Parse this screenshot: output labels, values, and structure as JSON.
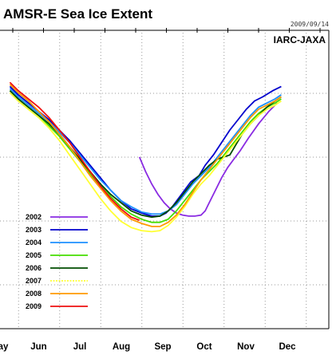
{
  "chart_data": {
    "type": "line",
    "title": "AMSR-E Sea Ice Extent",
    "date_stamp": "2009/09/14",
    "org": "IARC-JAXA",
    "x_ticks": [
      "ay",
      "Jun",
      "Jul",
      "Aug",
      "Sep",
      "Oct",
      "Nov",
      "Dec"
    ],
    "x_domain": [
      4.3,
      12.3
    ],
    "y_domain_relative": [
      0,
      1
    ],
    "grid": true,
    "legend": "bottom-left",
    "series": [
      {
        "name": "2002",
        "color": "#8a2be2",
        "points": [
          [
            7.45,
            0.62
          ],
          [
            7.6,
            0.55
          ],
          [
            7.75,
            0.49
          ],
          [
            7.9,
            0.44
          ],
          [
            8.05,
            0.4
          ],
          [
            8.2,
            0.37
          ],
          [
            8.35,
            0.35
          ],
          [
            8.5,
            0.34
          ],
          [
            8.65,
            0.335
          ],
          [
            8.8,
            0.335
          ],
          [
            8.95,
            0.34
          ],
          [
            9.05,
            0.36
          ],
          [
            9.15,
            0.4
          ],
          [
            9.3,
            0.46
          ],
          [
            9.45,
            0.52
          ],
          [
            9.6,
            0.57
          ],
          [
            9.75,
            0.61
          ],
          [
            9.9,
            0.65
          ],
          [
            10.1,
            0.71
          ],
          [
            10.35,
            0.78
          ],
          [
            10.6,
            0.84
          ],
          [
            10.8,
            0.88
          ]
        ]
      },
      {
        "name": "2003",
        "color": "#0000cd",
        "points": [
          [
            4.3,
            0.96
          ],
          [
            4.5,
            0.92
          ],
          [
            4.75,
            0.88
          ],
          [
            5.0,
            0.84
          ],
          [
            5.25,
            0.8
          ],
          [
            5.5,
            0.75
          ],
          [
            5.75,
            0.7
          ],
          [
            6.0,
            0.64
          ],
          [
            6.25,
            0.58
          ],
          [
            6.5,
            0.52
          ],
          [
            6.75,
            0.46
          ],
          [
            7.0,
            0.41
          ],
          [
            7.25,
            0.37
          ],
          [
            7.5,
            0.35
          ],
          [
            7.75,
            0.335
          ],
          [
            7.95,
            0.335
          ],
          [
            8.1,
            0.35
          ],
          [
            8.25,
            0.38
          ],
          [
            8.4,
            0.42
          ],
          [
            8.55,
            0.46
          ],
          [
            8.7,
            0.5
          ],
          [
            8.9,
            0.53
          ],
          [
            9.05,
            0.58
          ],
          [
            9.25,
            0.63
          ],
          [
            9.45,
            0.69
          ],
          [
            9.65,
            0.75
          ],
          [
            9.85,
            0.8
          ],
          [
            10.05,
            0.85
          ],
          [
            10.25,
            0.89
          ],
          [
            10.45,
            0.91
          ],
          [
            10.7,
            0.94
          ],
          [
            10.9,
            0.96
          ]
        ]
      },
      {
        "name": "2004",
        "color": "#1e90ff",
        "points": [
          [
            4.3,
            0.95
          ],
          [
            4.5,
            0.91
          ],
          [
            4.75,
            0.87
          ],
          [
            5.0,
            0.83
          ],
          [
            5.25,
            0.79
          ],
          [
            5.5,
            0.74
          ],
          [
            5.75,
            0.69
          ],
          [
            6.0,
            0.63
          ],
          [
            6.25,
            0.57
          ],
          [
            6.5,
            0.51
          ],
          [
            6.75,
            0.46
          ],
          [
            7.0,
            0.41
          ],
          [
            7.25,
            0.38
          ],
          [
            7.5,
            0.355
          ],
          [
            7.75,
            0.345
          ],
          [
            7.95,
            0.345
          ],
          [
            8.15,
            0.36
          ],
          [
            8.35,
            0.39
          ],
          [
            8.55,
            0.44
          ],
          [
            8.75,
            0.49
          ],
          [
            8.95,
            0.53
          ],
          [
            9.15,
            0.57
          ],
          [
            9.35,
            0.62
          ],
          [
            9.55,
            0.67
          ],
          [
            9.75,
            0.72
          ],
          [
            9.95,
            0.77
          ],
          [
            10.15,
            0.82
          ],
          [
            10.35,
            0.86
          ],
          [
            10.55,
            0.88
          ],
          [
            10.75,
            0.9
          ],
          [
            10.9,
            0.92
          ]
        ]
      },
      {
        "name": "2005",
        "color": "#44dd00",
        "points": [
          [
            4.3,
            0.94
          ],
          [
            4.5,
            0.9
          ],
          [
            4.75,
            0.86
          ],
          [
            5.0,
            0.82
          ],
          [
            5.25,
            0.77
          ],
          [
            5.5,
            0.72
          ],
          [
            5.75,
            0.66
          ],
          [
            6.0,
            0.6
          ],
          [
            6.25,
            0.54
          ],
          [
            6.5,
            0.48
          ],
          [
            6.75,
            0.43
          ],
          [
            7.0,
            0.38
          ],
          [
            7.25,
            0.345
          ],
          [
            7.5,
            0.32
          ],
          [
            7.75,
            0.305
          ],
          [
            7.95,
            0.305
          ],
          [
            8.15,
            0.32
          ],
          [
            8.35,
            0.36
          ],
          [
            8.55,
            0.41
          ],
          [
            8.75,
            0.46
          ],
          [
            8.95,
            0.51
          ],
          [
            9.15,
            0.55
          ],
          [
            9.35,
            0.59
          ],
          [
            9.55,
            0.64
          ],
          [
            9.75,
            0.69
          ],
          [
            9.95,
            0.74
          ],
          [
            10.15,
            0.79
          ],
          [
            10.35,
            0.83
          ],
          [
            10.55,
            0.86
          ],
          [
            10.75,
            0.88
          ],
          [
            10.9,
            0.9
          ]
        ]
      },
      {
        "name": "2006",
        "color": "#004d00",
        "points": [
          [
            4.3,
            0.94
          ],
          [
            4.5,
            0.9
          ],
          [
            4.75,
            0.86
          ],
          [
            5.0,
            0.82
          ],
          [
            5.25,
            0.78
          ],
          [
            5.5,
            0.73
          ],
          [
            5.75,
            0.67
          ],
          [
            6.0,
            0.61
          ],
          [
            6.25,
            0.55
          ],
          [
            6.5,
            0.49
          ],
          [
            6.75,
            0.44
          ],
          [
            7.0,
            0.4
          ],
          [
            7.25,
            0.36
          ],
          [
            7.5,
            0.34
          ],
          [
            7.75,
            0.33
          ],
          [
            7.95,
            0.335
          ],
          [
            8.15,
            0.36
          ],
          [
            8.35,
            0.4
          ],
          [
            8.55,
            0.45
          ],
          [
            8.75,
            0.5
          ],
          [
            8.95,
            0.54
          ],
          [
            9.15,
            0.58
          ],
          [
            9.35,
            0.61
          ],
          [
            9.5,
            0.62
          ],
          [
            9.65,
            0.63
          ],
          [
            9.8,
            0.68
          ],
          [
            9.95,
            0.73
          ],
          [
            10.15,
            0.78
          ],
          [
            10.35,
            0.82
          ],
          [
            10.55,
            0.86
          ],
          [
            10.75,
            0.89
          ],
          [
            10.9,
            0.91
          ]
        ]
      },
      {
        "name": "2007",
        "color": "#ffff33",
        "points": [
          [
            4.3,
            0.93
          ],
          [
            4.5,
            0.89
          ],
          [
            4.75,
            0.85
          ],
          [
            5.0,
            0.81
          ],
          [
            5.25,
            0.76
          ],
          [
            5.5,
            0.7
          ],
          [
            5.75,
            0.63
          ],
          [
            6.0,
            0.56
          ],
          [
            6.25,
            0.49
          ],
          [
            6.5,
            0.42
          ],
          [
            6.75,
            0.36
          ],
          [
            7.0,
            0.31
          ],
          [
            7.25,
            0.28
          ],
          [
            7.5,
            0.265
          ],
          [
            7.75,
            0.26
          ],
          [
            7.95,
            0.265
          ],
          [
            8.15,
            0.29
          ],
          [
            8.35,
            0.33
          ],
          [
            8.55,
            0.38
          ],
          [
            8.75,
            0.44
          ],
          [
            8.95,
            0.49
          ],
          [
            9.15,
            0.53
          ],
          [
            9.35,
            0.58
          ],
          [
            9.55,
            0.63
          ],
          [
            9.75,
            0.68
          ],
          [
            9.95,
            0.73
          ],
          [
            10.15,
            0.78
          ],
          [
            10.35,
            0.82
          ],
          [
            10.55,
            0.85
          ],
          [
            10.75,
            0.87
          ],
          [
            10.9,
            0.89
          ]
        ]
      },
      {
        "name": "2008",
        "color": "#ff9900",
        "points": [
          [
            4.3,
            0.97
          ],
          [
            4.5,
            0.93
          ],
          [
            4.75,
            0.89
          ],
          [
            5.0,
            0.84
          ],
          [
            5.25,
            0.79
          ],
          [
            5.5,
            0.73
          ],
          [
            5.75,
            0.67
          ],
          [
            6.0,
            0.6
          ],
          [
            6.25,
            0.53
          ],
          [
            6.5,
            0.47
          ],
          [
            6.75,
            0.41
          ],
          [
            7.0,
            0.36
          ],
          [
            7.25,
            0.32
          ],
          [
            7.5,
            0.3
          ],
          [
            7.75,
            0.285
          ],
          [
            7.95,
            0.285
          ],
          [
            8.15,
            0.305
          ],
          [
            8.35,
            0.34
          ],
          [
            8.55,
            0.39
          ],
          [
            8.75,
            0.45
          ],
          [
            8.95,
            0.51
          ],
          [
            9.15,
            0.56
          ],
          [
            9.35,
            0.61
          ],
          [
            9.55,
            0.66
          ],
          [
            9.75,
            0.71
          ],
          [
            9.95,
            0.76
          ],
          [
            10.15,
            0.81
          ],
          [
            10.35,
            0.85
          ],
          [
            10.55,
            0.87
          ],
          [
            10.75,
            0.89
          ],
          [
            10.9,
            0.91
          ]
        ]
      },
      {
        "name": "2009",
        "color": "#ee1111",
        "points": [
          [
            4.3,
            0.98
          ],
          [
            4.5,
            0.94
          ],
          [
            4.75,
            0.9
          ],
          [
            5.0,
            0.86
          ],
          [
            5.25,
            0.81
          ],
          [
            5.5,
            0.75
          ],
          [
            5.75,
            0.69
          ],
          [
            6.0,
            0.62
          ],
          [
            6.25,
            0.55
          ],
          [
            6.5,
            0.48
          ],
          [
            6.75,
            0.42
          ],
          [
            7.0,
            0.37
          ],
          [
            7.25,
            0.33
          ],
          [
            7.45,
            0.315
          ]
        ]
      }
    ]
  }
}
